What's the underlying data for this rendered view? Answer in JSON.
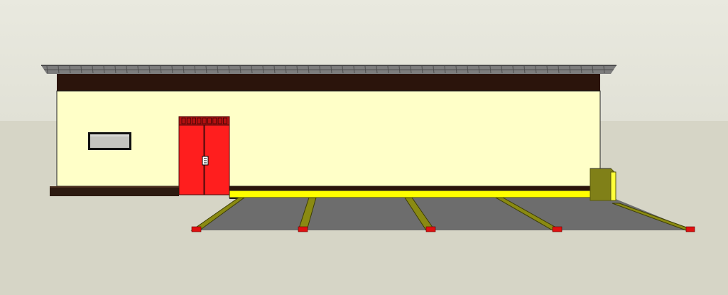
{
  "scene": {
    "colors": {
      "sky_top": "#e9e9df",
      "sky_bottom": "#e1e1d6",
      "ground": "#d6d5c6",
      "roof": "#7d7d7d",
      "roof_edge": "#4e4e4e",
      "fascia": "#2b140b",
      "wall": "#ffffc8",
      "wall_outline": "#222222",
      "window_frame": "#111111",
      "window_glass": "#c4c4c0",
      "door": "#ff1e1e",
      "door_header": "#b31010",
      "door_outline": "#4a0a0a",
      "plinth": "#2d1a10",
      "curb_yellow": "#ffff00",
      "curb_edge": "#1e1e1e",
      "parking": "#6d6d6d",
      "parking_stripe": "#8a8a12",
      "stripe_edge": "#3d3d05",
      "stop_block": "#e01010",
      "shed_olive": "#808018",
      "shed_olive_dark": "#5a5a0c"
    },
    "icons": {
      "door_handle": "door-handle-icon"
    }
  }
}
